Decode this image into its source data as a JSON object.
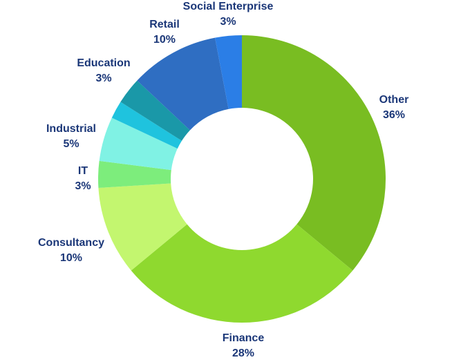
{
  "chart_data": {
    "type": "donut",
    "categories": [
      "Other",
      "Finance",
      "Consultancy",
      "IT",
      "Industrial",
      null,
      "Education",
      "Retail",
      "Social Enterprise"
    ],
    "values": [
      36,
      28,
      10,
      3,
      5,
      2,
      3,
      10,
      3
    ],
    "value_labels": [
      "36%",
      "28%",
      "10%",
      "3%",
      "5%",
      null,
      "3%",
      "10%",
      "3%"
    ],
    "colors": [
      "#79bd22",
      "#8fd92f",
      "#c3f66f",
      "#7ded7c",
      "#80f2e4",
      "#1fc3de",
      "#1a98a8",
      "#2f6ec2",
      "#2b7ee6"
    ]
  }
}
